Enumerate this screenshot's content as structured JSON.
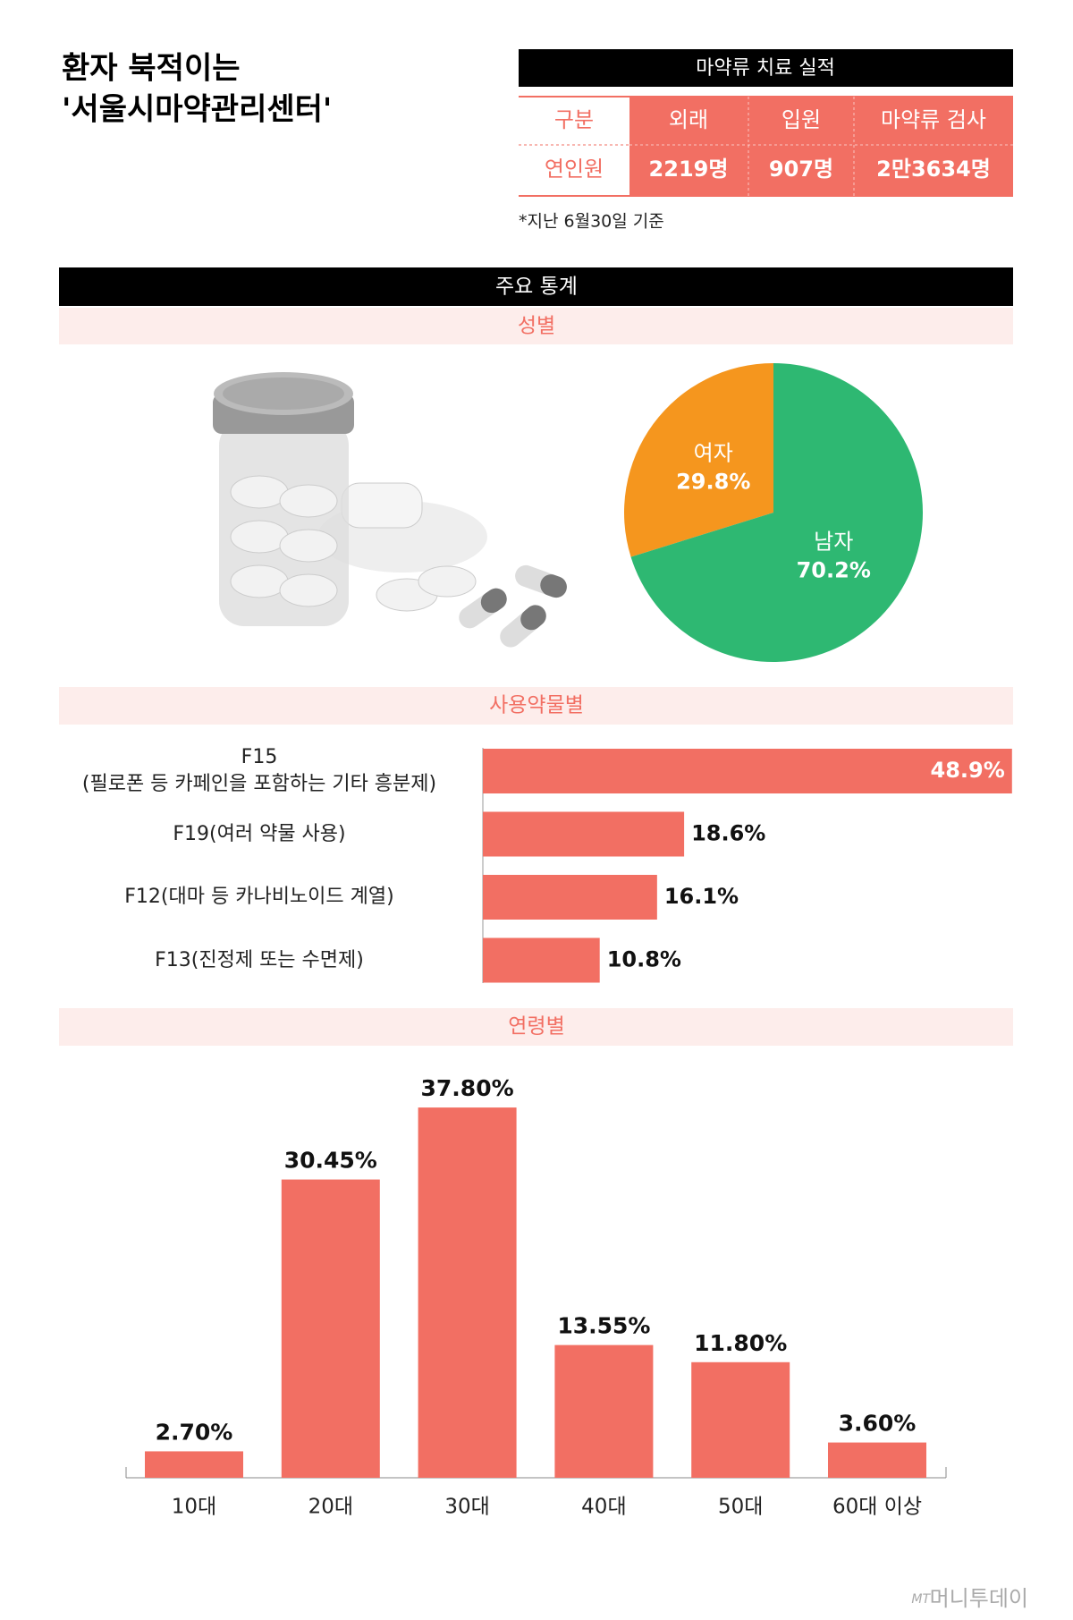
{
  "header": {
    "title": [
      "환자 북적이는",
      "'서울시마약관리센터'"
    ]
  },
  "table": {
    "title": "마약류 치료 실적",
    "columns": [
      "구분",
      "외래",
      "입원",
      "마약류 검사"
    ],
    "rows": [
      [
        "연인원",
        "2219명",
        "907명",
        "2만3634명"
      ]
    ],
    "note": "*지난 6월30일 기준"
  },
  "section_title": "주요 통계",
  "chart_data": [
    {
      "type": "pie",
      "title": "성별",
      "categories": [
        "여자",
        "남자"
      ],
      "values": [
        29.8,
        70.2
      ],
      "value_labels": [
        "29.8%",
        "70.2%"
      ],
      "colors": [
        "#F5961E",
        "#2EB872"
      ]
    },
    {
      "type": "barh",
      "title": "사용약물별",
      "categories": [
        "F15\n(필로폰 등 카페인을 포함하는 기타 흥분제)",
        "F19(여러 약물 사용)",
        "F12(대마 등 카나비노이드 계열)",
        "F13(진정제 또는 수면제)"
      ],
      "values": [
        48.9,
        18.6,
        16.1,
        10.8
      ],
      "value_labels": [
        "48.9%",
        "18.6%",
        "16.1%",
        "10.8%"
      ],
      "color": "#F26F63",
      "xlim": [
        0,
        49
      ]
    },
    {
      "type": "bar",
      "title": "연령별",
      "categories": [
        "10대",
        "20대",
        "30대",
        "40대",
        "50대",
        "60대 이상"
      ],
      "values": [
        2.7,
        30.45,
        37.8,
        13.55,
        11.8,
        3.6
      ],
      "value_labels": [
        "2.70%",
        "30.45%",
        "37.80%",
        "13.55%",
        "11.80%",
        "3.60%"
      ],
      "color": "#F26F63",
      "ylim": [
        0,
        40
      ]
    }
  ],
  "footer": {
    "logo_mark": "MT",
    "logo": "머니투데이"
  }
}
